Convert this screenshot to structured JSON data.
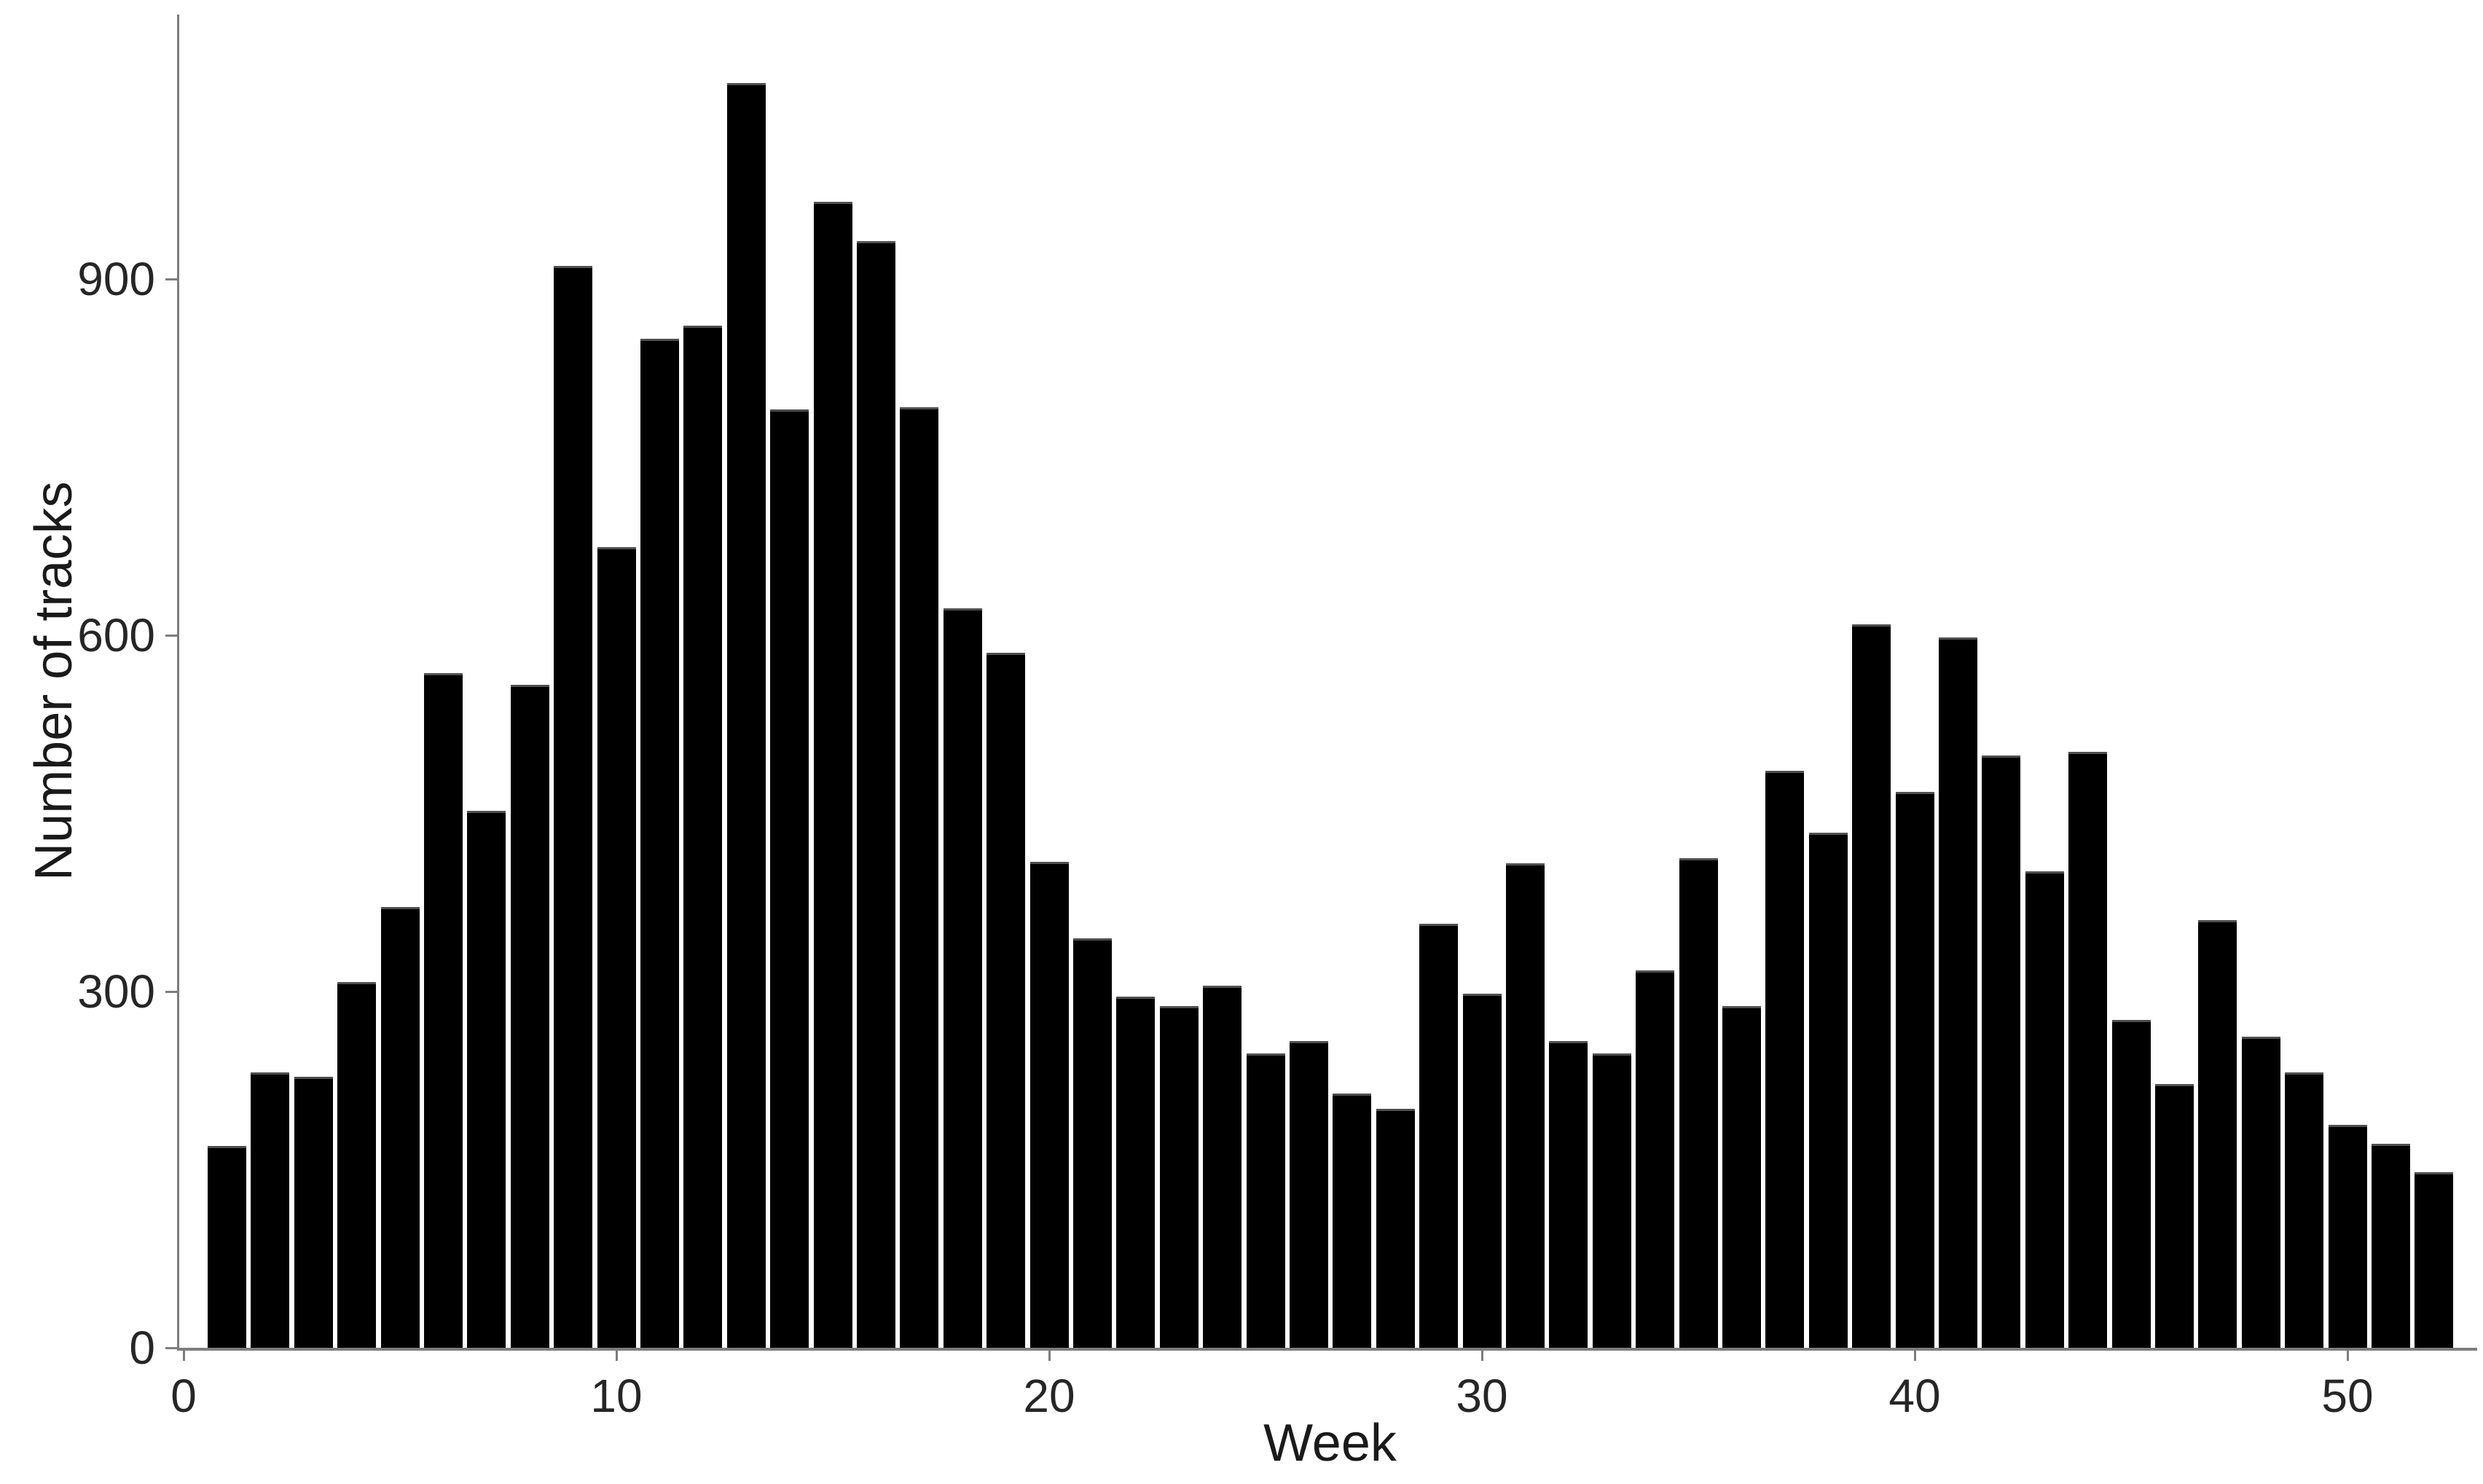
{
  "chart_data": {
    "type": "bar",
    "title": "",
    "xlabel": "Week",
    "ylabel": "Number of tracks",
    "x": [
      1,
      2,
      3,
      4,
      5,
      6,
      7,
      8,
      9,
      10,
      11,
      12,
      13,
      14,
      15,
      16,
      17,
      18,
      19,
      20,
      21,
      22,
      23,
      24,
      25,
      26,
      27,
      28,
      29,
      30,
      31,
      32,
      33,
      34,
      35,
      36,
      37,
      38,
      39,
      40,
      41,
      42,
      43,
      44,
      45,
      46,
      47,
      48,
      49,
      50,
      51,
      52
    ],
    "values": [
      170,
      232,
      228,
      308,
      371,
      568,
      452,
      558,
      911,
      674,
      850,
      861,
      1065,
      790,
      965,
      932,
      792,
      623,
      585,
      409,
      345,
      296,
      288,
      305,
      248,
      258,
      214,
      201,
      357,
      298,
      408,
      258,
      248,
      318,
      412,
      288,
      486,
      434,
      609,
      468,
      598,
      499,
      401,
      502,
      276,
      222,
      360,
      262,
      232,
      188,
      172,
      148
    ],
    "x_ticks": [
      0,
      10,
      20,
      30,
      40,
      50
    ],
    "y_ticks": [
      0,
      300,
      600,
      900
    ],
    "xlim": [
      0,
      53.2
    ],
    "ylim": [
      0,
      1123
    ],
    "grid": false,
    "legend": "none",
    "bar_color": "#000000",
    "axis_color": "#7d7d7d",
    "label_color": "#262626"
  }
}
